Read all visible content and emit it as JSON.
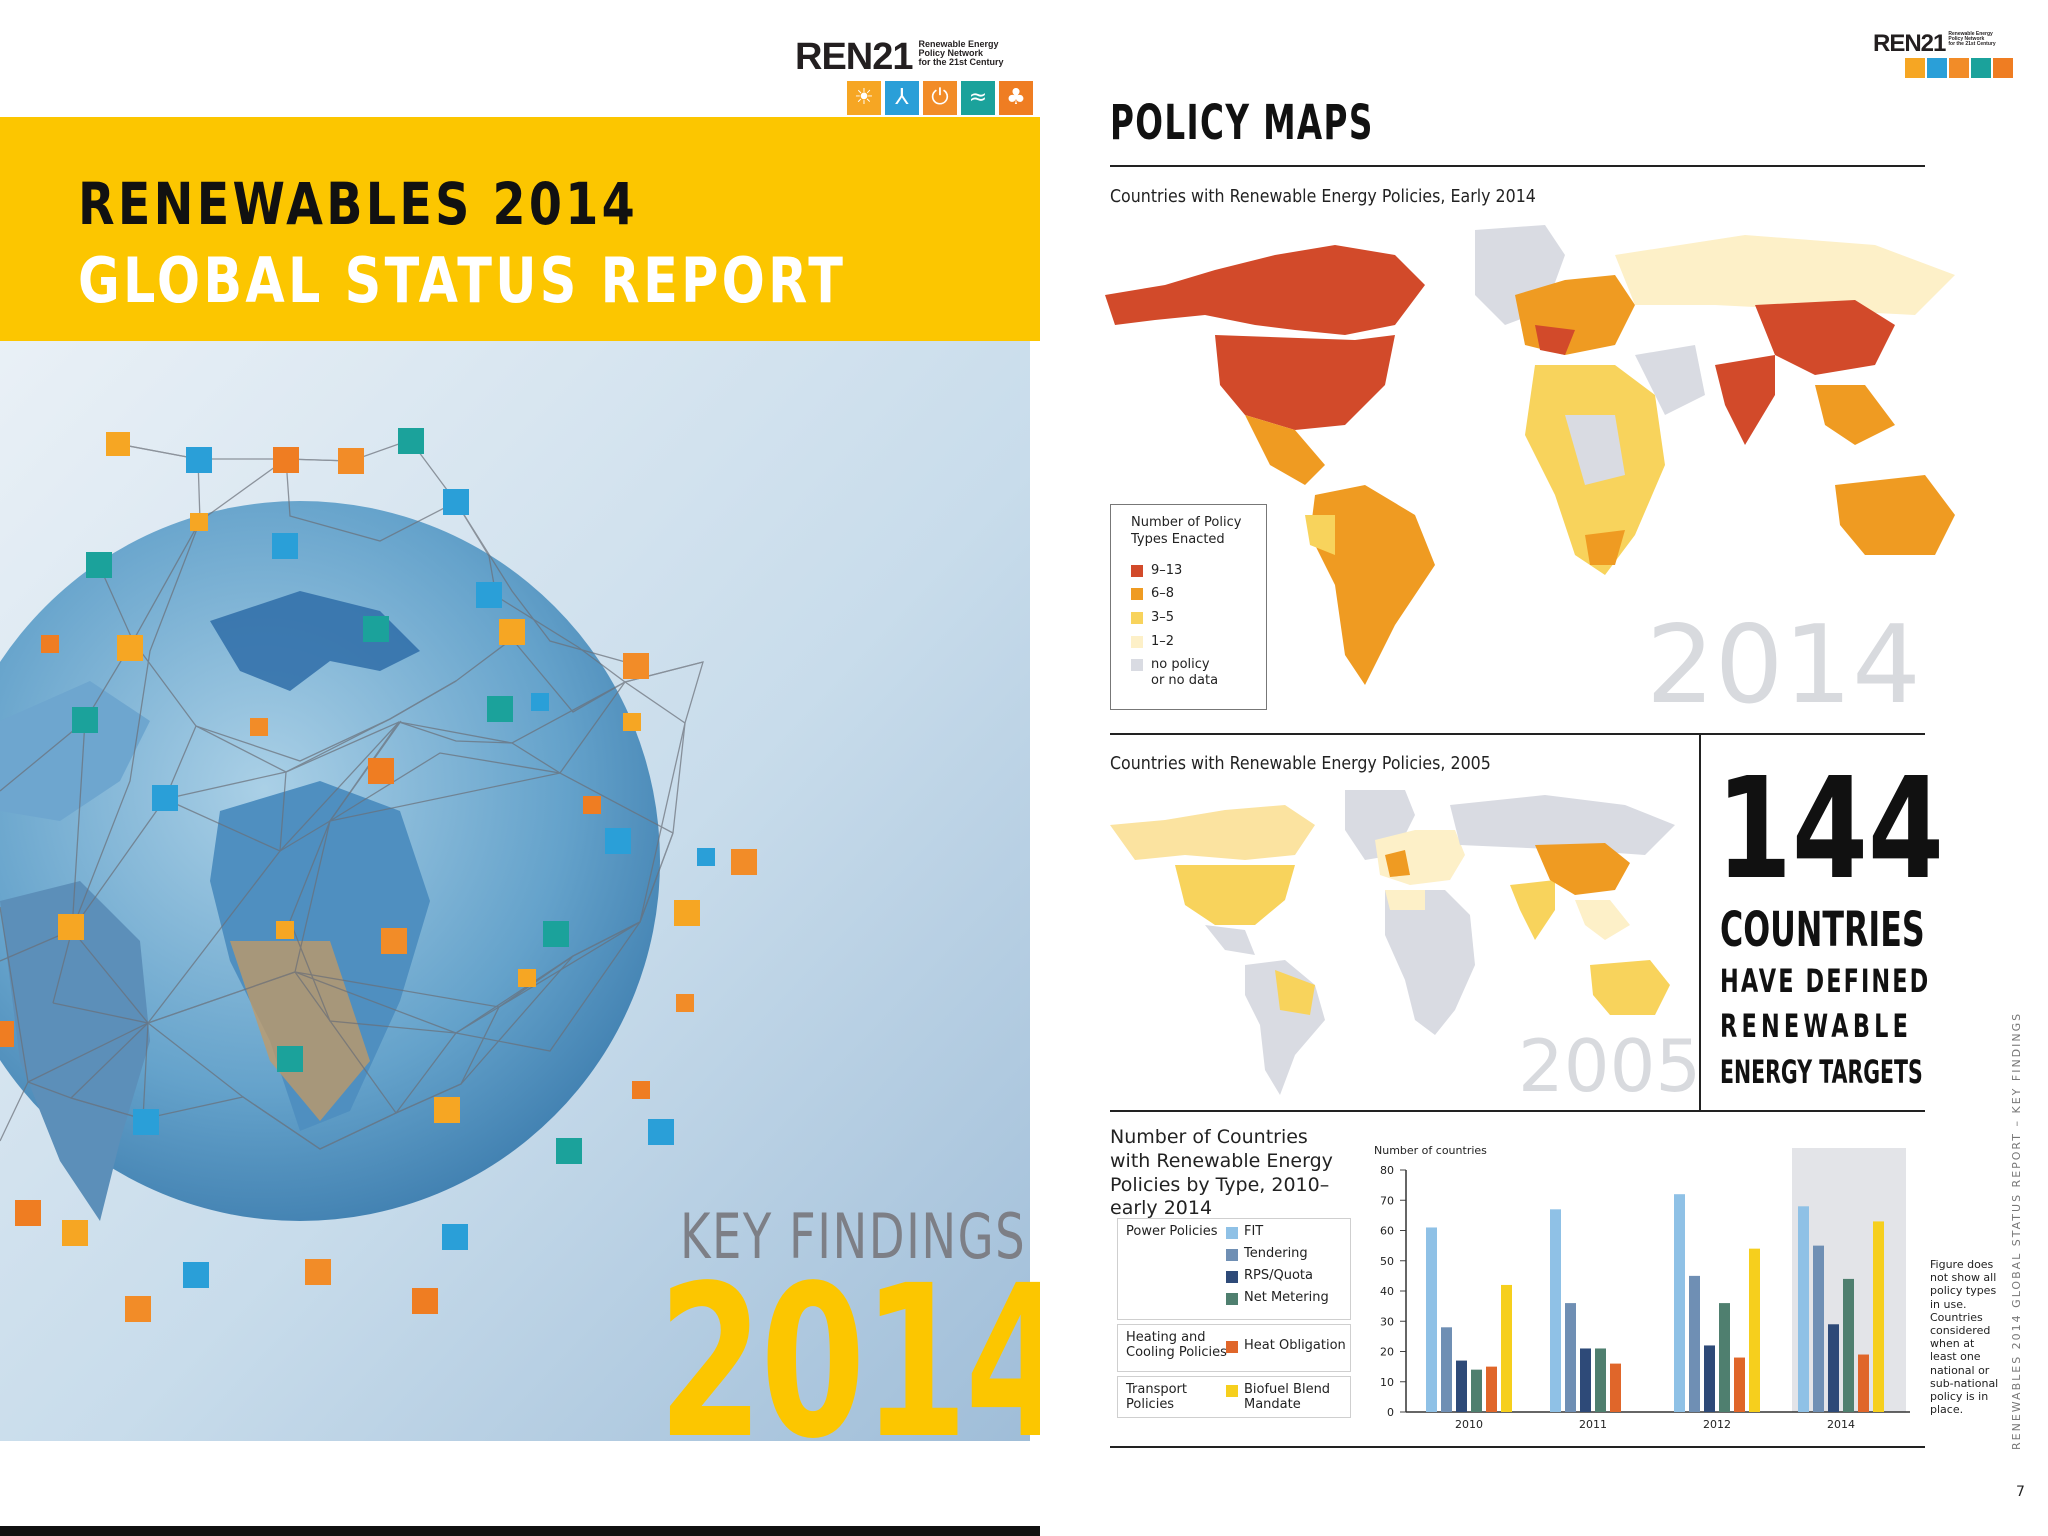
{
  "left_page": {
    "logo": {
      "wordmark": "REN21",
      "subtitle_lines": [
        "Renewable Energy",
        "Policy Network",
        "for the 21st Century"
      ],
      "icons": [
        "sun-icon",
        "wind-turbine-icon",
        "power-icon",
        "waves-icon",
        "leaf-icon"
      ]
    },
    "title": {
      "line1": "RENEWABLES 2014",
      "line2": "GLOBAL STATUS REPORT"
    },
    "key_findings": {
      "label": "KEY FINDINGS",
      "year": "2014"
    },
    "colors": {
      "yellow": "#fcc600",
      "gray_text": "#7d7f86"
    }
  },
  "right_page": {
    "logo": {
      "wordmark": "REN21",
      "subtitle_lines": [
        "Renewable Energy",
        "Policy Network",
        "for the 21st Century"
      ]
    },
    "title": "POLICY MAPS",
    "map_2014": {
      "caption": "Countries with Renewable Energy Policies, Early 2014",
      "year_watermark": "2014",
      "legend": {
        "title_line1": "Number of Policy",
        "title_line2": "Types Enacted",
        "items": [
          {
            "label": "9–13",
            "color": "#d24a2a"
          },
          {
            "label": "6–8",
            "color": "#ef9b22"
          },
          {
            "label": "3–5",
            "color": "#f8d35c"
          },
          {
            "label": "1–2",
            "color": "#fdf0c8"
          },
          {
            "label_line1": "no policy",
            "label_line2": "or no data",
            "color": "#d9dbe2"
          }
        ]
      }
    },
    "map_2005": {
      "caption": "Countries with Renewable Energy Policies, 2005",
      "year_watermark": "2005"
    },
    "fact": {
      "number": "144",
      "line1": "COUNTRIES",
      "line2": "HAVE DEFINED",
      "line3": "RENEWABLE",
      "line4": "ENERGY TARGETS"
    },
    "chart_section": {
      "title": "Number of Countries with Renewable Energy Policies by Type, 2010–early 2014",
      "legend": {
        "power": {
          "category": "Power Policies",
          "items": [
            "FIT",
            "Tendering",
            "RPS/Quota",
            "Net Metering"
          ]
        },
        "heating": {
          "category_line1": "Heating and",
          "category_line2": "Cooling Policies",
          "items": [
            "Heat Obligation"
          ]
        },
        "transport": {
          "category_line1": "Transport",
          "category_line2": "Policies",
          "items_line1": "Biofuel Blend",
          "items_line2": "Mandate"
        }
      },
      "side_note": "Figure does not show all policy types in use. Countries considered when at least one national or sub-national policy is in place."
    },
    "footer": {
      "vertical_text": "RENEWABLES 2014 GLOBAL STATUS REPORT – KEY FINDINGS",
      "page_number": "7"
    }
  },
  "chart_data": {
    "type": "bar",
    "title": "Number of Countries with Renewable Energy Policies by Type, 2010–early 2014",
    "ylabel": "Number of countries",
    "xlabel": "",
    "ylim": [
      0,
      80
    ],
    "yticks": [
      0,
      10,
      20,
      30,
      40,
      50,
      60,
      70,
      80
    ],
    "categories": [
      "2010",
      "2011",
      "2012",
      "2014"
    ],
    "highlight_category": "2014",
    "series": [
      {
        "name": "FIT",
        "color": "#8fc1e6",
        "values": [
          61,
          67,
          72,
          68
        ]
      },
      {
        "name": "Tendering",
        "color": "#6f8fb4",
        "values": [
          28,
          36,
          45,
          55
        ]
      },
      {
        "name": "RPS/Quota",
        "color": "#2e4a78",
        "values": [
          17,
          21,
          22,
          29
        ]
      },
      {
        "name": "Net Metering",
        "color": "#4f7f6f",
        "values": [
          14,
          21,
          36,
          44
        ]
      },
      {
        "name": "Heat Obligation",
        "color": "#e0662a",
        "values": [
          15,
          16,
          18,
          19
        ]
      },
      {
        "name": "Biofuel Blend Mandate",
        "color": "#f6cf1d",
        "values": [
          42,
          0,
          54,
          63
        ]
      }
    ]
  }
}
